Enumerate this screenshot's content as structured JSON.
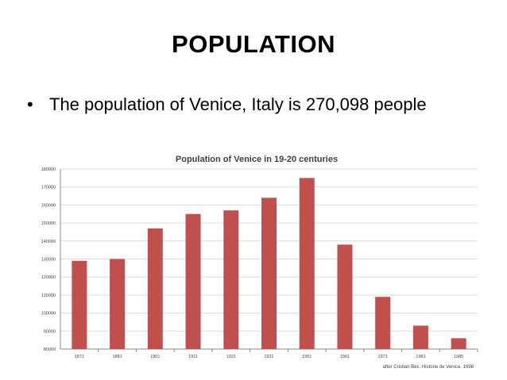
{
  "slide": {
    "title": "POPULATION",
    "bullet_marker": "•",
    "bullet_text": "The population of Venice, Italy is 270,098 people"
  },
  "colors": {
    "bar": "#c0504d",
    "grid": "#d9d9d9",
    "axis": "#888888",
    "text": "#404040"
  },
  "chart_data": {
    "type": "bar",
    "title": "Population of Venice in 19-20 centuries",
    "categories": [
      "1871",
      "1881",
      "1901",
      "1911",
      "1921",
      "1931",
      "1951",
      "1961",
      "1971",
      "1981",
      "1985"
    ],
    "values": [
      129000,
      130000,
      147000,
      155000,
      157000,
      164000,
      175000,
      138000,
      109000,
      93000,
      86000
    ],
    "ylim": [
      80000,
      180000
    ],
    "yticks": [
      80000,
      90000,
      100000,
      110000,
      120000,
      130000,
      140000,
      150000,
      160000,
      170000,
      180000
    ],
    "xlabel": "",
    "ylabel": "",
    "grid": true,
    "source_note": "after Cristian Bec. Historie de Venice. 1998"
  }
}
